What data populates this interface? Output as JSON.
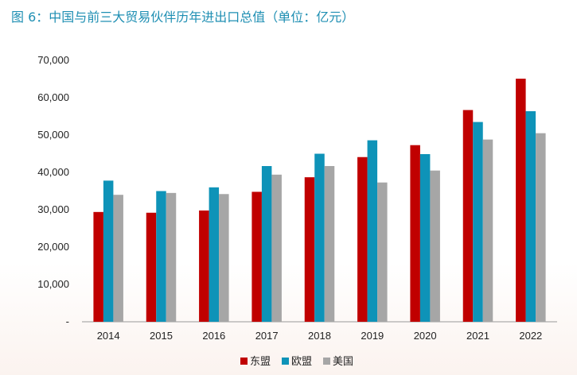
{
  "figure": {
    "title": "图 6：中国与前三大贸易伙伴历年进出口总值（单位：亿元）"
  },
  "colors": {
    "title": "#1f8fb3",
    "axis": "#999999",
    "text": "#222222"
  },
  "chart_data": {
    "type": "bar",
    "title": "图 6：中国与前三大贸易伙伴历年进出口总值（单位：亿元）",
    "xlabel": "",
    "ylabel": "",
    "ylim": [
      0,
      70000
    ],
    "grid": false,
    "legend_position": "bottom-center",
    "categories": [
      "2014",
      "2015",
      "2016",
      "2017",
      "2018",
      "2019",
      "2020",
      "2021",
      "2022"
    ],
    "y_ticks": [
      0,
      10000,
      20000,
      30000,
      40000,
      50000,
      60000,
      70000
    ],
    "y_tick_labels": [
      "-",
      "10,000",
      "20,000",
      "30,000",
      "40,000",
      "50,000",
      "60,000",
      "70,000"
    ],
    "series": [
      {
        "name": "东盟",
        "color": "#c00000",
        "values": [
          29400,
          29200,
          29800,
          34800,
          38700,
          44100,
          47300,
          56700,
          65100
        ]
      },
      {
        "name": "欧盟",
        "color": "#0e93b8",
        "values": [
          37800,
          35000,
          36000,
          41700,
          45000,
          48600,
          44900,
          53500,
          56400
        ]
      },
      {
        "name": "美国",
        "color": "#a6a6a6",
        "values": [
          34000,
          34500,
          34200,
          39400,
          41700,
          37300,
          40500,
          48800,
          50500
        ]
      }
    ]
  }
}
